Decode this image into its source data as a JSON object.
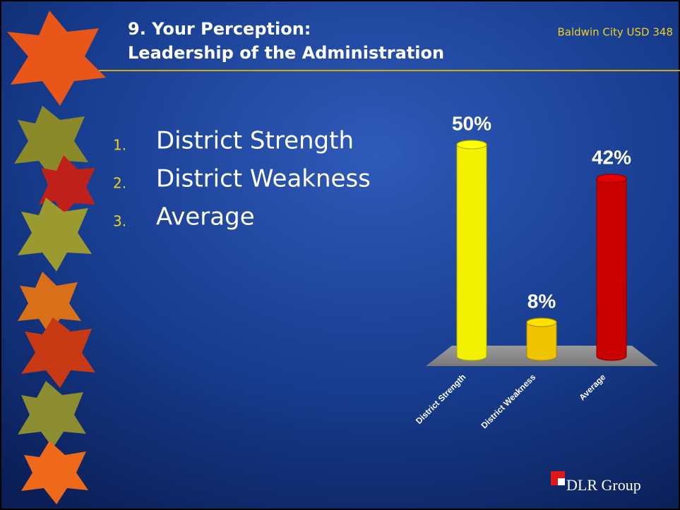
{
  "header": {
    "title": [
      "9. Your Perception:",
      "Leadership of the Administration"
    ],
    "organization": "Baldwin City USD 348"
  },
  "list": {
    "numbers": [
      "1.",
      "2.",
      "3."
    ],
    "items": [
      "District Strength",
      "District Weakness",
      "Average"
    ]
  },
  "footer": {
    "logo": "DLR Group"
  },
  "chart_data": {
    "type": "bar",
    "categories": [
      "District Strength",
      "District Weakness",
      "Average"
    ],
    "values": [
      50,
      8,
      42
    ],
    "value_labels": [
      "50%",
      "8%",
      "42%"
    ],
    "colors": [
      "#f2f200",
      "#f0c400",
      "#c80000"
    ]
  }
}
